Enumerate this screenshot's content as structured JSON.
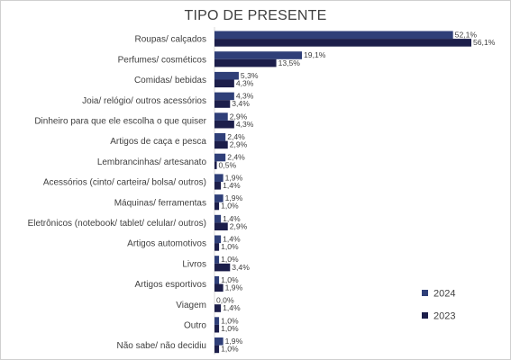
{
  "chart_data": {
    "type": "bar",
    "orientation": "horizontal",
    "title": "TIPO DE PRESENTE",
    "categories": [
      "Roupas/ calçados",
      "Perfumes/ cosméticos",
      "Comidas/ bebidas",
      "Joia/ relógio/ outros acessórios",
      "Dinheiro para que ele escolha o que quiser",
      "Artigos de caça e pesca",
      "Lembrancinhas/ artesanato",
      "Acessórios (cinto/ carteira/ bolsa/ outros)",
      "Máquinas/ ferramentas",
      "Eletrônicos (notebook/ tablet/ celular/ outros)",
      "Artigos automotivos",
      "Livros",
      "Artigos esportivos",
      "Viagem",
      "Outro",
      "Não sabe/ não decidiu"
    ],
    "series": [
      {
        "name": "2024",
        "color": "#2f3f78",
        "values": [
          52.1,
          19.1,
          5.3,
          4.3,
          2.9,
          2.4,
          2.4,
          1.9,
          1.9,
          1.4,
          1.4,
          1.0,
          1.0,
          0.0,
          1.0,
          1.9
        ],
        "labels": [
          "52,1%",
          "19,1%",
          "5,3%",
          "4,3%",
          "2,9%",
          "2,4%",
          "2,4%",
          "1,9%",
          "1,9%",
          "1,4%",
          "1,4%",
          "1,0%",
          "1,0%",
          "0,0%",
          "1,0%",
          "1,9%"
        ]
      },
      {
        "name": "2023",
        "color": "#1c1e4a",
        "values": [
          56.1,
          13.5,
          4.3,
          3.4,
          4.3,
          2.9,
          0.5,
          1.4,
          1.0,
          2.9,
          1.0,
          3.4,
          1.9,
          1.4,
          1.0,
          1.0
        ],
        "labels": [
          "56,1%",
          "13,5%",
          "4,3%",
          "3,4%",
          "4,3%",
          "2,9%",
          "0,5%",
          "1,4%",
          "1,0%",
          "2,9%",
          "1,0%",
          "3,4%",
          "1,9%",
          "1,4%",
          "1,0%",
          "1,0%"
        ]
      }
    ],
    "legend_position": "right",
    "axis": "none",
    "grid": false
  }
}
